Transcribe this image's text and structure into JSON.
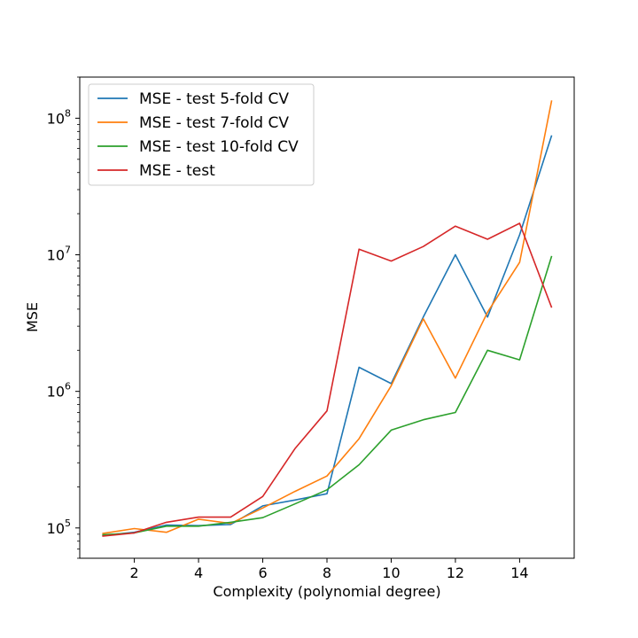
{
  "chart_data": {
    "type": "line",
    "title": "",
    "xlabel": "Complexity (polynomial degree)",
    "ylabel": "MSE",
    "x": [
      1,
      2,
      3,
      4,
      5,
      6,
      7,
      8,
      9,
      10,
      11,
      12,
      13,
      14,
      15
    ],
    "xlim": [
      0.3,
      15.7
    ],
    "ylim": [
      60000,
      200000000
    ],
    "yscale": "log",
    "grid": false,
    "legend_position": "upper-left",
    "xticks": [
      2,
      4,
      6,
      8,
      10,
      12,
      14
    ],
    "xtick_labels": [
      "2",
      "4",
      "6",
      "8",
      "10",
      "12",
      "14"
    ],
    "yticks": [
      100000,
      1000000,
      10000000,
      100000000
    ],
    "ytick_labels": [
      {
        "base": "10",
        "exp": "5"
      },
      {
        "base": "10",
        "exp": "6"
      },
      {
        "base": "10",
        "exp": "7"
      },
      {
        "base": "10",
        "exp": "8"
      }
    ],
    "series": [
      {
        "name": "MSE - test 5-fold CV",
        "color": "#1f77b4",
        "values": [
          88000,
          93000,
          105000,
          104000,
          106000,
          145000,
          160000,
          178000,
          1500000,
          1140000,
          3500000,
          10000000,
          3500000,
          14000000,
          75000000
        ]
      },
      {
        "name": "MSE - test 7-fold CV",
        "color": "#ff7f0e",
        "values": [
          91000,
          99000,
          93000,
          116000,
          108000,
          140000,
          185000,
          240000,
          450000,
          1100000,
          3400000,
          1250000,
          3800000,
          8800000,
          135000000
        ]
      },
      {
        "name": "MSE - test 10-fold CV",
        "color": "#2ca02c",
        "values": [
          89000,
          92000,
          103000,
          103000,
          110000,
          119000,
          150000,
          190000,
          290000,
          520000,
          620000,
          700000,
          2000000,
          1700000,
          9800000
        ]
      },
      {
        "name": "MSE - test",
        "color": "#d62728",
        "values": [
          87000,
          92000,
          110000,
          120000,
          120000,
          170000,
          380000,
          720000,
          11000000,
          9000000,
          11500000,
          16200000,
          13000000,
          17000000,
          4100000
        ]
      }
    ]
  }
}
